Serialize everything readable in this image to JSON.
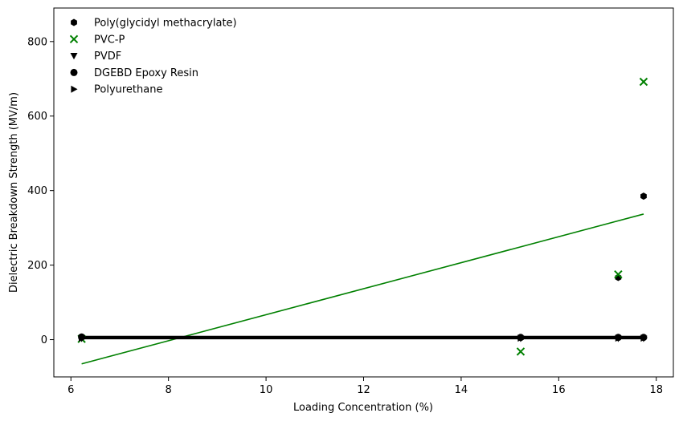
{
  "chart_data": {
    "type": "scatter",
    "title": "",
    "xlabel": "Loading Concentration (%)",
    "ylabel": "Dielectric Breakdown Strength (MV/m)",
    "xlim": [
      5.65,
      18.35
    ],
    "ylim": [
      -100,
      890
    ],
    "xticks": [
      6,
      8,
      10,
      12,
      14,
      16,
      18
    ],
    "yticks": [
      0,
      200,
      400,
      600,
      800
    ],
    "legend_position": "top-left",
    "series": [
      {
        "name": "Poly(glycidyl methacrylate)",
        "marker": "hexagon",
        "color": "#000000",
        "x": [
          6.22,
          15.22,
          17.22,
          17.74
        ],
        "y": [
          6,
          5,
          167,
          385
        ]
      },
      {
        "name": "PVC-P",
        "marker": "x",
        "color": "#008000",
        "x": [
          6.22,
          15.22,
          17.22,
          17.74
        ],
        "y": [
          2,
          -32,
          175,
          692
        ]
      },
      {
        "name": "PVDF",
        "marker": "triangle-down",
        "color": "#000000",
        "x": [
          6.22,
          15.22,
          17.22,
          17.74
        ],
        "y": [
          3,
          3,
          3,
          3
        ]
      },
      {
        "name": "DGEBD Epoxy Resin",
        "marker": "circle",
        "color": "#000000",
        "x": [
          6.22,
          15.22,
          17.22,
          17.74
        ],
        "y": [
          7,
          6,
          6,
          6
        ]
      },
      {
        "name": "Polyurethane",
        "marker": "triangle-right",
        "color": "#000000",
        "x": [
          6.22,
          15.22,
          17.22,
          17.74
        ],
        "y": [
          4,
          4,
          4,
          4
        ]
      }
    ],
    "trendlines": [
      {
        "color": "#008000",
        "x": [
          6.22,
          17.74
        ],
        "y": [
          -65,
          337
        ]
      },
      {
        "color": "#000000",
        "x": [
          6.22,
          17.74
        ],
        "y": [
          7,
          7
        ]
      },
      {
        "color": "#000000",
        "x": [
          6.22,
          17.74
        ],
        "y": [
          5,
          5
        ]
      },
      {
        "color": "#000000",
        "x": [
          6.22,
          17.74
        ],
        "y": [
          4,
          4
        ]
      }
    ]
  }
}
